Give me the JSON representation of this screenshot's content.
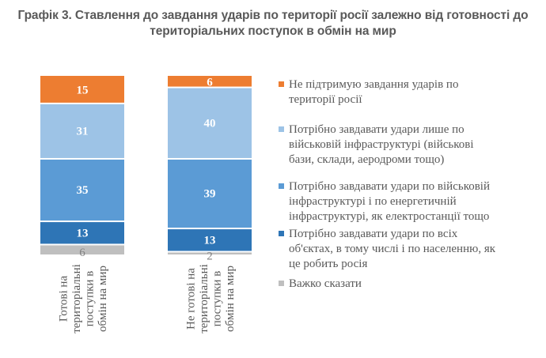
{
  "chart_data": {
    "type": "bar",
    "stacked": true,
    "title_line1": "Графік 3. Ставлення до завдання ударів по території росії залежно від готовності до",
    "title_line2": "територіальних поступок в обмін на мир",
    "categories": [
      [
        "Готові на",
        "територіальні",
        "поступки в",
        "обмін на мир"
      ],
      [
        "Не готові на",
        "територіальні",
        "поступки в",
        "обмін на мир"
      ]
    ],
    "series": [
      {
        "name": "Важко сказати",
        "color": "#bfbfbf",
        "label_color": "#808080",
        "values": [
          6,
          2
        ]
      },
      {
        "name": "Потрібно завдавати удари по всіх об'єктах, в тому числі і по населенню, як це робить росія",
        "color": "#2e75b6",
        "label_color": "#ffffff",
        "values": [
          13,
          13
        ]
      },
      {
        "name": "Потрібно завдавати удари по військовій інфраструктурі і по енергетичній інфраструктурі, як електростанції тощо",
        "color": "#5b9bd5",
        "label_color": "#ffffff",
        "values": [
          35,
          39
        ]
      },
      {
        "name": "Потрібно завдавати удари  лише по військовій інфраструктурі (військові бази, склади, аеродроми тощо)",
        "color": "#9dc3e6",
        "label_color": "#ffffff",
        "values": [
          31,
          40
        ]
      },
      {
        "name": "Не підтримую завдання ударів по території росії",
        "color": "#ed7d31",
        "label_color": "#ffffff",
        "values": [
          15,
          6
        ]
      }
    ],
    "xlabel": "",
    "ylabel": "",
    "ylim": [
      0,
      100
    ],
    "grid": false,
    "legend_position": "right"
  },
  "legend": {
    "items": [
      {
        "lines": [
          "Не підтримую завдання ударів по",
          "території росії"
        ],
        "color": "#ed7d31"
      },
      {
        "lines": [
          "Потрібно завдавати удари  лише по",
          "військовій інфраструктурі (військові",
          "бази, склади, аеродроми тощо)"
        ],
        "color": "#9dc3e6"
      },
      {
        "lines": [
          "Потрібно завдавати удари по військовій",
          "інфраструктурі і по енергетичній",
          "інфраструктурі, як електростанції тощо"
        ],
        "color": "#5b9bd5"
      },
      {
        "lines": [
          "Потрібно завдавати удари по всіх",
          "об'єктах, в тому числі і по населенню, як",
          "це робить росія"
        ],
        "color": "#2e75b6"
      },
      {
        "lines": [
          "Важко сказати"
        ],
        "color": "#bfbfbf"
      }
    ]
  }
}
